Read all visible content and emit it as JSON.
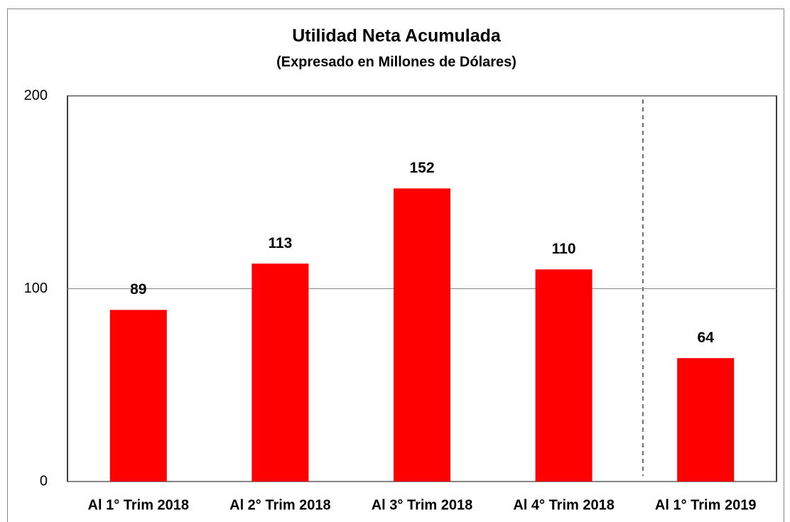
{
  "chart_data": {
    "type": "bar",
    "title": "Utilidad Neta Acumulada",
    "subtitle": "(Expresado en Millones de Dólares)",
    "categories": [
      "Al 1° Trim 2018",
      "Al 2° Trim 2018",
      "Al 3° Trim 2018",
      "Al 4° Trim 2018",
      "Al 1° Trim 2019"
    ],
    "values": [
      89,
      113,
      152,
      110,
      64
    ],
    "color": "#ff0000",
    "ylim": [
      0,
      200
    ],
    "yticks": [
      0,
      100,
      200
    ],
    "grid": true
  }
}
